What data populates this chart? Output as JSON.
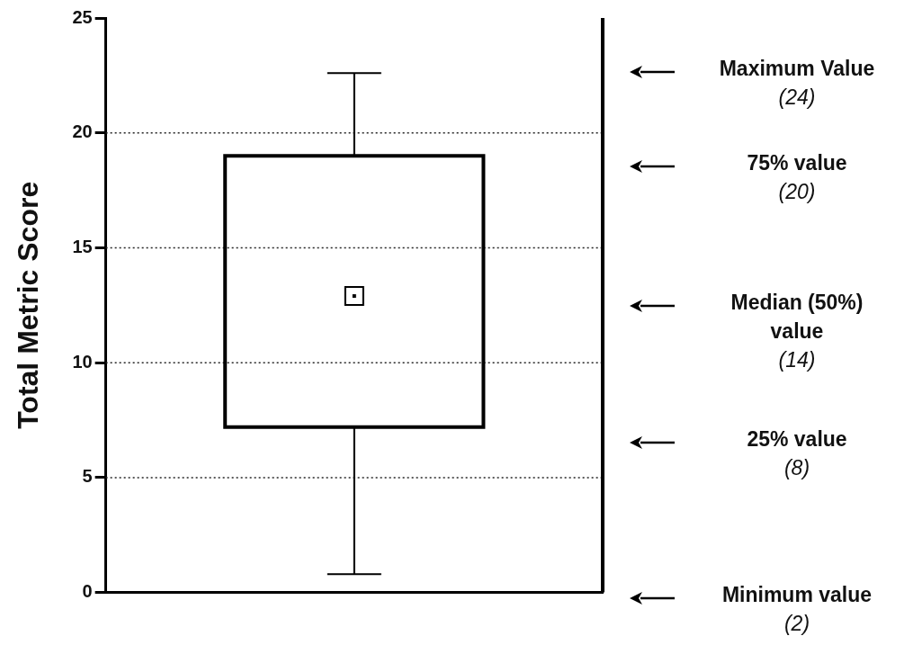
{
  "chart_data": {
    "type": "box",
    "ylabel": "Total Metric Score",
    "categories": [
      null
    ],
    "boxes": [
      {
        "low": 0.8,
        "q1": 7.2,
        "median": 12.9,
        "q3": 19.0,
        "high": 22.6
      }
    ],
    "ylim": [
      0,
      25
    ],
    "yticks": [
      0,
      5,
      10,
      15,
      20,
      25
    ],
    "grid": "y",
    "color": "#000000",
    "annotations": [
      "Maximum Value\n(24)",
      "75% value\n(20)",
      "Median (50%)\nvalue\n(14)",
      "25% value\n(8)",
      "Minimum value\n(2)"
    ]
  }
}
